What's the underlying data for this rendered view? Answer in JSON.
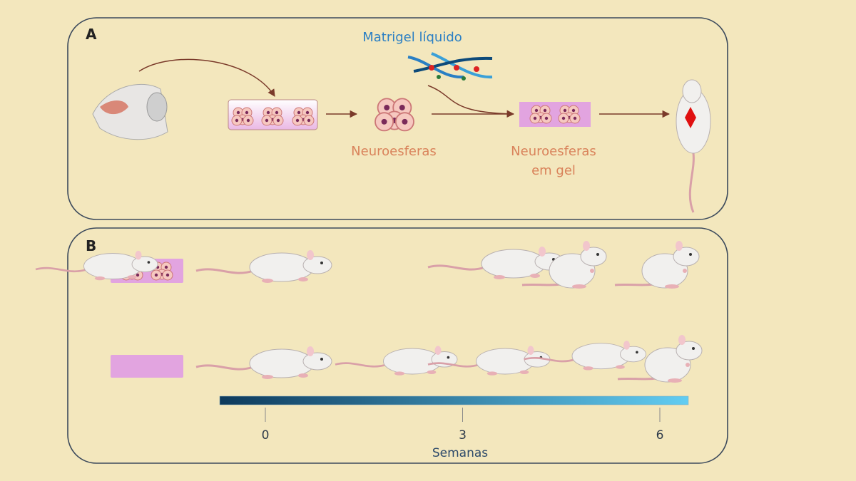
{
  "panel_a": {
    "label": "A",
    "matrigel": "Matrigel líquido",
    "neurospheres": "Neuroesferas",
    "gel_neurospheres": [
      "Neuroesferas",
      "em gel"
    ]
  },
  "panel_b": {
    "label": "B",
    "timeline": {
      "ticks": [
        0,
        3,
        6
      ],
      "label": "Semanas"
    }
  }
}
